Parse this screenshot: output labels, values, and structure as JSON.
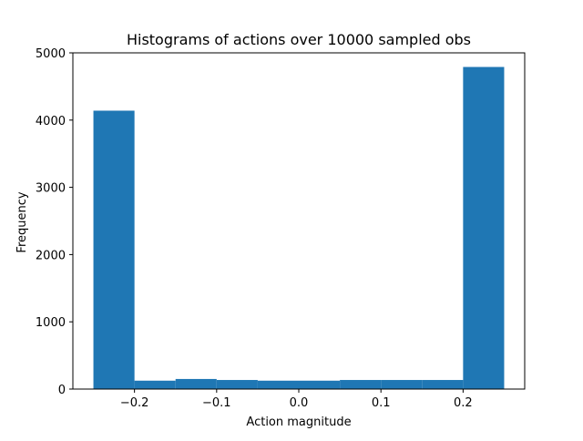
{
  "chart_data": {
    "type": "bar",
    "title": "Histograms of actions over 10000 sampled obs",
    "xlabel": "Action magnitude",
    "ylabel": "Frequency",
    "xlim": [
      -0.275,
      0.275
    ],
    "ylim": [
      0,
      5000
    ],
    "bar_color": "#1f77b4",
    "grid": false,
    "legend": "none",
    "bins": [
      {
        "x0": -0.25,
        "x1": -0.2,
        "value": 4140
      },
      {
        "x0": -0.2,
        "x1": -0.15,
        "value": 125
      },
      {
        "x0": -0.15,
        "x1": -0.1,
        "value": 150
      },
      {
        "x0": -0.1,
        "x1": -0.05,
        "value": 135
      },
      {
        "x0": -0.05,
        "x1": 0.0,
        "value": 125
      },
      {
        "x0": 0.0,
        "x1": 0.05,
        "value": 125
      },
      {
        "x0": 0.05,
        "x1": 0.1,
        "value": 135
      },
      {
        "x0": 0.1,
        "x1": 0.15,
        "value": 135
      },
      {
        "x0": 0.15,
        "x1": 0.2,
        "value": 135
      },
      {
        "x0": 0.2,
        "x1": 0.25,
        "value": 4790
      }
    ],
    "xticks": [
      {
        "value": -0.2,
        "label": "−0.2"
      },
      {
        "value": -0.1,
        "label": "−0.1"
      },
      {
        "value": 0.0,
        "label": "0.0"
      },
      {
        "value": 0.1,
        "label": "0.1"
      },
      {
        "value": 0.2,
        "label": "0.2"
      }
    ],
    "yticks": [
      {
        "value": 0,
        "label": "0"
      },
      {
        "value": 1000,
        "label": "1000"
      },
      {
        "value": 2000,
        "label": "2000"
      },
      {
        "value": 3000,
        "label": "3000"
      },
      {
        "value": 4000,
        "label": "4000"
      },
      {
        "value": 5000,
        "label": "5000"
      }
    ]
  }
}
